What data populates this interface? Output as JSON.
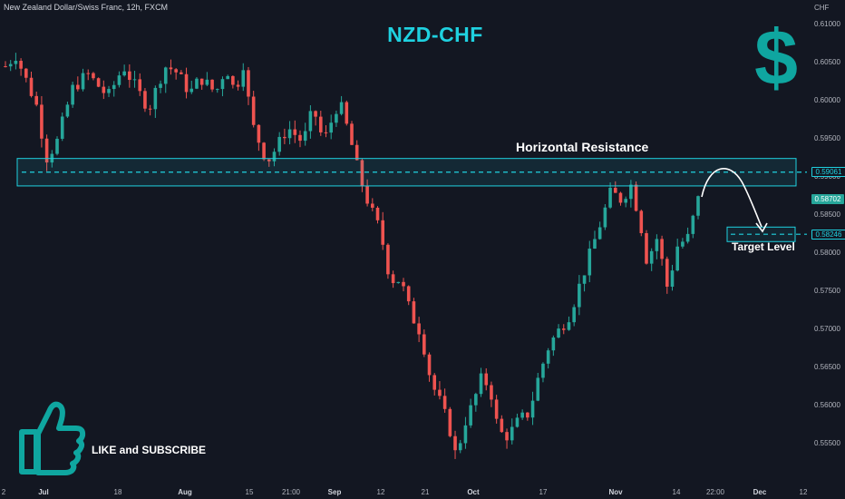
{
  "symbol_info": "New Zealand Dollar/Swiss Franc, 12h, FXCM",
  "title": "NZD-CHF",
  "axis_currency": "CHF",
  "annotations": {
    "resistance_label": "Horizontal Resistance",
    "target_label": "Target Level",
    "like_subscribe": "LIKE and SUBSCRIBE"
  },
  "icons": {
    "dollar": "dollar-sign-icon",
    "dollar_glyph": "$",
    "thumbs_up": "thumbs-up-icon"
  },
  "price_badges": [
    {
      "value": "0.59061",
      "bg": "#1fd1e0",
      "fg": "#131722",
      "outlined": true
    },
    {
      "value": "0.58702",
      "bg": "#26a69a",
      "fg": "#ffffff",
      "outlined": false
    },
    {
      "value": "0.58246",
      "bg": "#1fd1e0",
      "fg": "#131722",
      "outlined": true
    }
  ],
  "colors": {
    "background": "#131722",
    "bull": "#26a69a",
    "bear": "#ef5350",
    "accent": "#1fd1e0",
    "icon": "#0fa6a0"
  },
  "chart_data": {
    "type": "candlestick",
    "y_ticks": [
      "0.61000",
      "0.60500",
      "0.60000",
      "0.59500",
      "0.59000",
      "0.58500",
      "0.58000",
      "0.57500",
      "0.57000",
      "0.56500",
      "0.56000",
      "0.55500"
    ],
    "x_ticks": [
      {
        "label": "2",
        "bold": false
      },
      {
        "label": "Jul",
        "bold": true
      },
      {
        "label": "18",
        "bold": false
      },
      {
        "label": "Aug",
        "bold": true
      },
      {
        "label": "15",
        "bold": false
      },
      {
        "label": "21:00",
        "bold": false
      },
      {
        "label": "Sep",
        "bold": true
      },
      {
        "label": "12",
        "bold": false
      },
      {
        "label": "21",
        "bold": false
      },
      {
        "label": "Oct",
        "bold": true
      },
      {
        "label": "17",
        "bold": false
      },
      {
        "label": "Nov",
        "bold": true
      },
      {
        "label": "14",
        "bold": false
      },
      {
        "label": "22:00",
        "bold": false
      },
      {
        "label": "Dec",
        "bold": true
      },
      {
        "label": "12",
        "bold": false
      }
    ],
    "ylim": [
      0.5513,
      0.612
    ],
    "resistance_zone": [
      0.5888,
      0.5924
    ],
    "resistance_level": 0.59061,
    "target_zone": [
      0.5815,
      0.5834
    ],
    "target_level": 0.58246,
    "last_price": 0.58702,
    "anchors": [
      [
        0.0,
        0.6045
      ],
      [
        0.02,
        0.606
      ],
      [
        0.06,
        0.5995
      ],
      [
        0.08,
        0.5925
      ],
      [
        0.1,
        0.5945
      ],
      [
        0.13,
        0.6015
      ],
      [
        0.16,
        0.6035
      ],
      [
        0.2,
        0.6005
      ],
      [
        0.23,
        0.6045
      ],
      [
        0.26,
        0.601
      ],
      [
        0.28,
        0.599
      ],
      [
        0.31,
        0.6045
      ],
      [
        0.33,
        0.604
      ],
      [
        0.36,
        0.601
      ],
      [
        0.38,
        0.603
      ],
      [
        0.41,
        0.601
      ],
      [
        0.43,
        0.6045
      ],
      [
        0.45,
        0.6005
      ],
      [
        0.46,
        0.6065
      ],
      [
        0.48,
        0.597
      ],
      [
        0.51,
        0.592
      ],
      [
        0.53,
        0.594
      ],
      [
        0.55,
        0.5965
      ],
      [
        0.58,
        0.5945
      ],
      [
        0.6,
        0.599
      ],
      [
        0.62,
        0.5945
      ],
      [
        0.65,
        0.6
      ],
      [
        0.67,
        0.5955
      ],
      [
        0.69,
        0.59
      ],
      [
        0.71,
        0.586
      ],
      [
        0.73,
        0.583
      ],
      [
        0.75,
        0.5765
      ],
      [
        0.77,
        0.5765
      ],
      [
        0.79,
        0.572
      ],
      [
        0.81,
        0.5695
      ],
      [
        0.83,
        0.563
      ],
      [
        0.85,
        0.56
      ],
      [
        0.87,
        0.556
      ],
      [
        0.88,
        0.5525
      ],
      [
        0.89,
        0.557
      ],
      [
        0.91,
        0.56
      ],
      [
        0.93,
        0.564
      ],
      [
        0.95,
        0.561
      ],
      [
        0.96,
        0.5565
      ],
      [
        0.98,
        0.556
      ],
      [
        1.0,
        0.558
      ],
      [
        1.02,
        0.559
      ],
      [
        1.04,
        0.564
      ],
      [
        1.06,
        0.568
      ],
      [
        1.08,
        0.57
      ],
      [
        1.1,
        0.572
      ],
      [
        1.12,
        0.576
      ],
      [
        1.14,
        0.58
      ],
      [
        1.16,
        0.584
      ],
      [
        1.18,
        0.588
      ],
      [
        1.2,
        0.587
      ],
      [
        1.22,
        0.589
      ],
      [
        1.24,
        0.583
      ],
      [
        1.25,
        0.579
      ],
      [
        1.27,
        0.582
      ],
      [
        1.29,
        0.5755
      ],
      [
        1.31,
        0.581
      ],
      [
        1.33,
        0.582
      ],
      [
        1.35,
        0.587
      ]
    ]
  }
}
